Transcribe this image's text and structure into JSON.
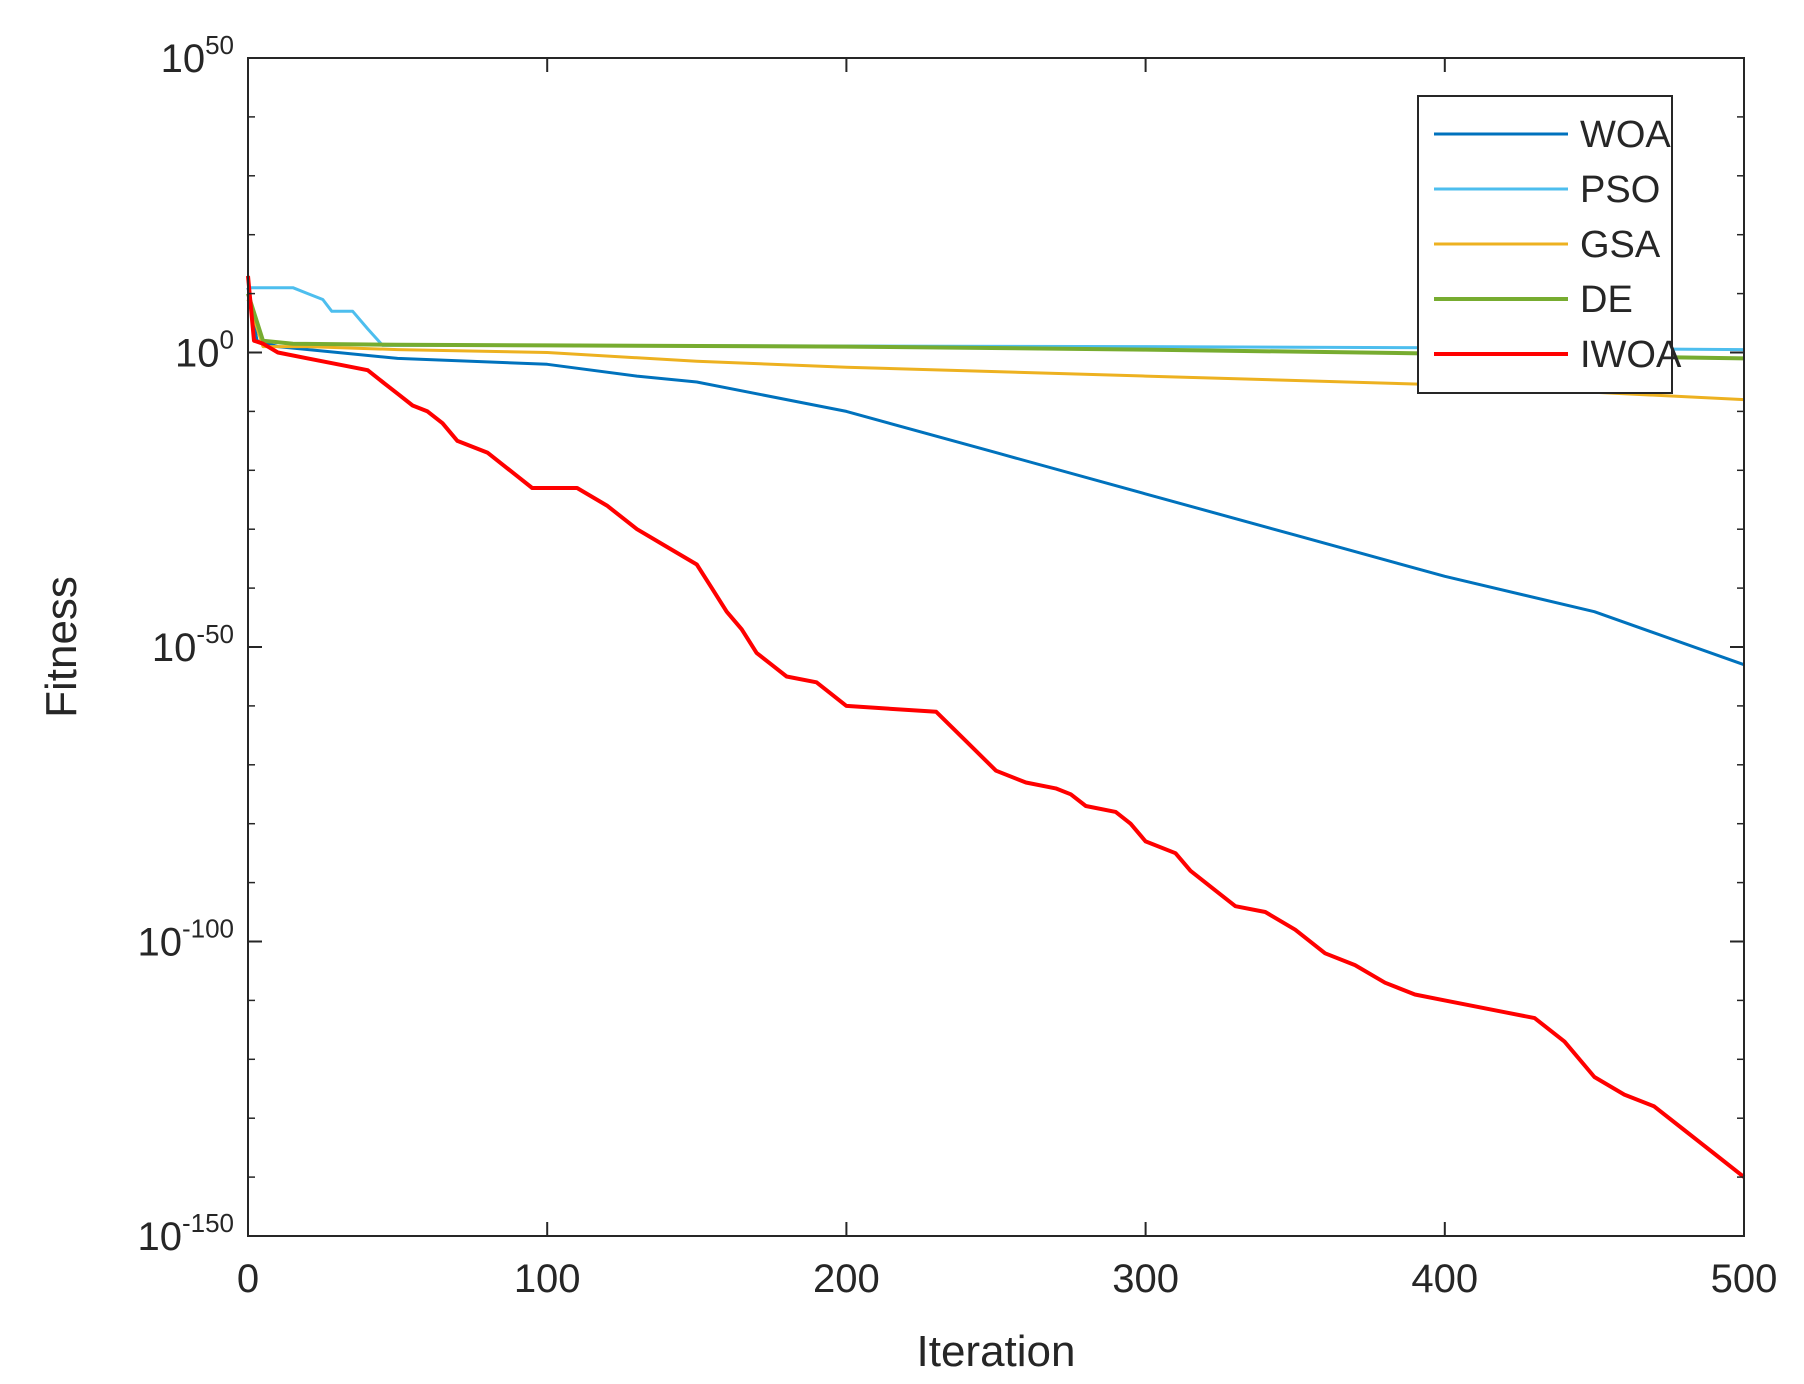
{
  "chart_data": {
    "type": "line",
    "title": "",
    "xlabel": "Iteration",
    "ylabel": "Fitness",
    "xlim": [
      0,
      500
    ],
    "ylim_exponent": [
      -150,
      50
    ],
    "yscale": "log",
    "grid": false,
    "box": true,
    "legend_position": "top-right",
    "x_ticks": [
      "0",
      "100",
      "200",
      "300",
      "400",
      "500"
    ],
    "x_tick_values": [
      0,
      100,
      200,
      300,
      400,
      500
    ],
    "y_ticks": [
      {
        "exp": 50,
        "base": "10",
        "power": "50"
      },
      {
        "exp": 0,
        "base": "10",
        "power": "0"
      },
      {
        "exp": -50,
        "base": "10",
        "power": "-50"
      },
      {
        "exp": -100,
        "base": "10",
        "power": "-100"
      },
      {
        "exp": -150,
        "base": "10",
        "power": "-150"
      }
    ],
    "y_minor_exps": [
      40,
      30,
      20,
      10,
      -10,
      -20,
      -30,
      -40,
      -60,
      -70,
      -80,
      -90,
      -110,
      -120,
      -130,
      -140
    ],
    "series": [
      {
        "name": "WOA",
        "color": "#0072BD",
        "width": 3,
        "points_log10": [
          [
            0,
            11
          ],
          [
            3,
            2
          ],
          [
            10,
            1
          ],
          [
            30,
            0
          ],
          [
            50,
            -1
          ],
          [
            100,
            -2
          ],
          [
            130,
            -4
          ],
          [
            150,
            -5
          ],
          [
            200,
            -10
          ],
          [
            250,
            -17
          ],
          [
            300,
            -24
          ],
          [
            350,
            -31
          ],
          [
            400,
            -38
          ],
          [
            450,
            -44
          ],
          [
            500,
            -53
          ]
        ]
      },
      {
        "name": "PSO",
        "color": "#4DBEEE",
        "width": 3,
        "points_log10": [
          [
            0,
            11
          ],
          [
            15,
            11
          ],
          [
            20,
            10
          ],
          [
            25,
            9
          ],
          [
            28,
            7
          ],
          [
            35,
            7
          ],
          [
            40,
            4
          ],
          [
            45,
            1.2
          ],
          [
            100,
            1.2
          ],
          [
            200,
            1.1
          ],
          [
            300,
            1
          ],
          [
            400,
            0.8
          ],
          [
            500,
            0.5
          ]
        ]
      },
      {
        "name": "GSA",
        "color": "#EDB120",
        "width": 3,
        "points_log10": [
          [
            0,
            9
          ],
          [
            5,
            1
          ],
          [
            20,
            1
          ],
          [
            50,
            0.5
          ],
          [
            100,
            0
          ],
          [
            150,
            -1.5
          ],
          [
            200,
            -2.5
          ],
          [
            300,
            -4
          ],
          [
            400,
            -5.5
          ],
          [
            500,
            -8
          ]
        ]
      },
      {
        "name": "DE",
        "color": "#77AC30",
        "width": 4,
        "points_log10": [
          [
            0,
            10
          ],
          [
            5,
            2
          ],
          [
            15,
            1.5
          ],
          [
            50,
            1.3
          ],
          [
            100,
            1.2
          ],
          [
            200,
            1
          ],
          [
            300,
            0.5
          ],
          [
            400,
            -0.2
          ],
          [
            500,
            -1
          ]
        ]
      },
      {
        "name": "IWOA",
        "color": "#FF0000",
        "width": 4,
        "points_log10": [
          [
            0,
            13
          ],
          [
            2,
            2
          ],
          [
            5,
            1.5
          ],
          [
            10,
            0
          ],
          [
            20,
            -1
          ],
          [
            30,
            -2
          ],
          [
            40,
            -3
          ],
          [
            45,
            -5
          ],
          [
            50,
            -7
          ],
          [
            55,
            -9
          ],
          [
            60,
            -10
          ],
          [
            65,
            -12
          ],
          [
            70,
            -15
          ],
          [
            80,
            -17
          ],
          [
            90,
            -21
          ],
          [
            95,
            -23
          ],
          [
            110,
            -23
          ],
          [
            120,
            -26
          ],
          [
            130,
            -30
          ],
          [
            140,
            -33
          ],
          [
            150,
            -36
          ],
          [
            155,
            -40
          ],
          [
            160,
            -44
          ],
          [
            165,
            -47
          ],
          [
            170,
            -51
          ],
          [
            175,
            -53
          ],
          [
            180,
            -55
          ],
          [
            190,
            -56
          ],
          [
            195,
            -58
          ],
          [
            200,
            -60
          ],
          [
            230,
            -61
          ],
          [
            240,
            -66
          ],
          [
            250,
            -71
          ],
          [
            260,
            -73
          ],
          [
            270,
            -74
          ],
          [
            275,
            -75
          ],
          [
            280,
            -77
          ],
          [
            290,
            -78
          ],
          [
            295,
            -80
          ],
          [
            300,
            -83
          ],
          [
            310,
            -85
          ],
          [
            315,
            -88
          ],
          [
            320,
            -90
          ],
          [
            330,
            -94
          ],
          [
            340,
            -95
          ],
          [
            350,
            -98
          ],
          [
            360,
            -102
          ],
          [
            370,
            -104
          ],
          [
            380,
            -107
          ],
          [
            390,
            -109
          ],
          [
            400,
            -110
          ],
          [
            410,
            -111
          ],
          [
            420,
            -112
          ],
          [
            430,
            -113
          ],
          [
            440,
            -117
          ],
          [
            450,
            -123
          ],
          [
            460,
            -126
          ],
          [
            470,
            -128
          ],
          [
            480,
            -132
          ],
          [
            490,
            -136
          ],
          [
            500,
            -140
          ]
        ]
      }
    ]
  }
}
